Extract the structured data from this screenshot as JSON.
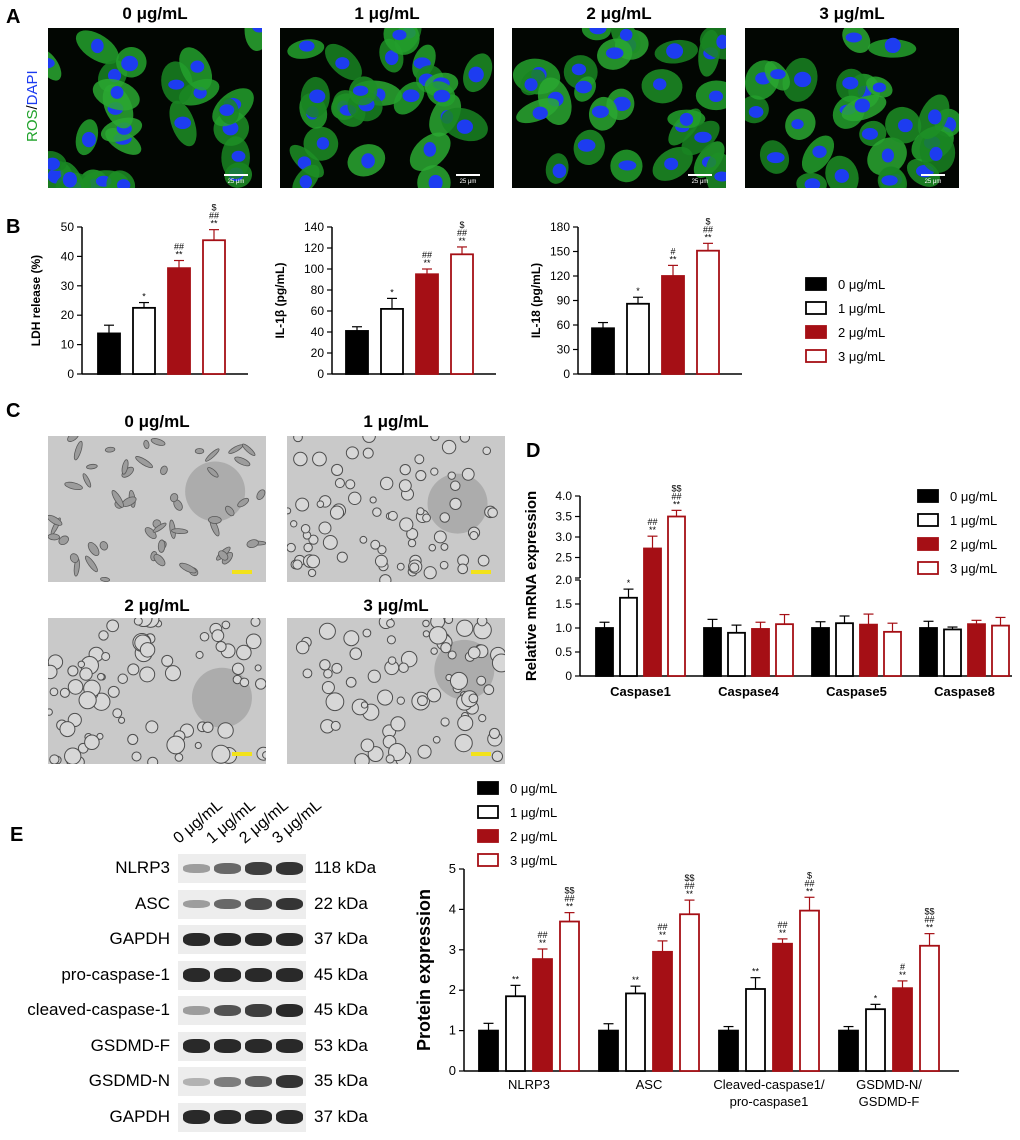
{
  "panel_letters": {
    "a": "A",
    "b": "B",
    "c": "C",
    "d": "D",
    "e": "E"
  },
  "panel_a": {
    "stain_label_green": "ROS",
    "stain_label_sep": "/",
    "stain_label_blue": "DAPI",
    "colors": {
      "ros": "#1fa22a",
      "dapi": "#1d3cf0",
      "background": "#020602"
    },
    "scale_bar": "25 μm",
    "titles": [
      "0 μg/mL",
      "1 μg/mL",
      "2 μg/mL",
      "3 μg/mL"
    ]
  },
  "panel_c": {
    "titles": [
      "0 μg/mL",
      "1 μg/mL",
      "2 μg/mL",
      "3 μg/mL"
    ],
    "scale_bar_color": "#f2e21a"
  },
  "legend": {
    "entries": [
      "0 μg/mL",
      "1 μg/mL",
      "2 μg/mL",
      "3 μg/mL"
    ],
    "fills": [
      "#000000",
      "#ffffff",
      "#a50f15",
      "#ffffff"
    ],
    "strokes": [
      "#000000",
      "#000000",
      "#a50f15",
      "#a50f15"
    ]
  },
  "chart_data": [
    {
      "id": "ldh",
      "type": "bar",
      "ylabel": "LDH release (%)",
      "ylim": [
        0,
        50
      ],
      "yticks": [
        0,
        10,
        20,
        30,
        40,
        50
      ],
      "categories": [
        ""
      ],
      "series": [
        {
          "name": "0 μg/mL",
          "values": [
            13.8
          ],
          "errors": [
            2.8
          ],
          "sig": [
            ""
          ]
        },
        {
          "name": "1 μg/mL",
          "values": [
            22.5
          ],
          "errors": [
            1.8
          ],
          "sig": [
            "*"
          ]
        },
        {
          "name": "2 μg/mL",
          "values": [
            36.0
          ],
          "errors": [
            2.6
          ],
          "sig": [
            "**\n##"
          ]
        },
        {
          "name": "3 μg/mL",
          "values": [
            45.5
          ],
          "errors": [
            3.6
          ],
          "sig": [
            "**\n##\n$"
          ]
        }
      ]
    },
    {
      "id": "il1b",
      "type": "bar",
      "ylabel": "IL-1β (pg/mL)",
      "ylim": [
        0,
        140
      ],
      "yticks": [
        0,
        20,
        40,
        60,
        80,
        100,
        120,
        140
      ],
      "categories": [
        ""
      ],
      "series": [
        {
          "name": "0 μg/mL",
          "values": [
            41
          ],
          "errors": [
            4
          ],
          "sig": [
            ""
          ]
        },
        {
          "name": "1 μg/mL",
          "values": [
            62
          ],
          "errors": [
            10
          ],
          "sig": [
            "*"
          ]
        },
        {
          "name": "2 μg/mL",
          "values": [
            95
          ],
          "errors": [
            5
          ],
          "sig": [
            "**\n##"
          ]
        },
        {
          "name": "3 μg/mL",
          "values": [
            114
          ],
          "errors": [
            7
          ],
          "sig": [
            "**\n##\n$"
          ]
        }
      ]
    },
    {
      "id": "il18",
      "type": "bar",
      "ylabel": "IL-18 (pg/mL)",
      "ylim": [
        0,
        180
      ],
      "yticks": [
        0,
        30,
        60,
        90,
        120,
        150,
        180
      ],
      "categories": [
        ""
      ],
      "series": [
        {
          "name": "0 μg/mL",
          "values": [
            56
          ],
          "errors": [
            7
          ],
          "sig": [
            ""
          ]
        },
        {
          "name": "1 μg/mL",
          "values": [
            86
          ],
          "errors": [
            8
          ],
          "sig": [
            "*"
          ]
        },
        {
          "name": "2 μg/mL",
          "values": [
            120
          ],
          "errors": [
            13
          ],
          "sig": [
            "**\n#"
          ]
        },
        {
          "name": "3 μg/mL",
          "values": [
            151
          ],
          "errors": [
            9
          ],
          "sig": [
            "**\n##\n$"
          ]
        }
      ]
    },
    {
      "id": "mrna",
      "type": "bar",
      "ylabel": "Relative mRNA expression",
      "axis_break": [
        2.0,
        2.0
      ],
      "yticks_lower": [
        0,
        0.5,
        1.0,
        1.5,
        2.0
      ],
      "yticks_upper": [
        2.0,
        2.5,
        3.0,
        3.5,
        4.0
      ],
      "ytick_labels_lower": [
        "0",
        "0.5",
        "1.0",
        "1.5",
        "2.0"
      ],
      "ytick_labels_upper": [
        "",
        "2.5",
        "3.0",
        "3.5",
        "4.0"
      ],
      "categories": [
        "Caspase1",
        "Caspase4",
        "Caspase5",
        "Caspase8"
      ],
      "series": [
        {
          "name": "0 μg/mL",
          "values": [
            1.0,
            1.0,
            1.0,
            1.0
          ],
          "errors": [
            0.12,
            0.18,
            0.13,
            0.14
          ],
          "sig": [
            "",
            "",
            "",
            ""
          ]
        },
        {
          "name": "1 μg/mL",
          "values": [
            1.63,
            0.9,
            1.1,
            0.97
          ],
          "errors": [
            0.18,
            0.16,
            0.15,
            0.05
          ],
          "sig": [
            "*",
            "",
            "",
            ""
          ]
        },
        {
          "name": "2 μg/mL",
          "values": [
            2.72,
            0.98,
            1.07,
            1.08
          ],
          "errors": [
            0.3,
            0.14,
            0.22,
            0.08
          ],
          "sig": [
            "**\n##",
            "",
            "",
            ""
          ]
        },
        {
          "name": "3 μg/mL",
          "values": [
            3.5,
            1.08,
            0.92,
            1.05
          ],
          "errors": [
            0.15,
            0.2,
            0.18,
            0.17
          ],
          "sig": [
            "**\n##\n$$",
            "",
            "",
            ""
          ]
        }
      ]
    },
    {
      "id": "protein",
      "type": "bar",
      "ylabel": "Protein expression",
      "ylim": [
        0,
        5
      ],
      "yticks": [
        0,
        1,
        2,
        3,
        4,
        5
      ],
      "categories": [
        "NLRP3",
        "ASC",
        "Cleaved-caspase1/\npro-caspase1",
        "GSDMD-N/\nGSDMD-F"
      ],
      "series": [
        {
          "name": "0 μg/mL",
          "values": [
            1.0,
            1.0,
            1.0,
            1.0
          ],
          "errors": [
            0.18,
            0.17,
            0.1,
            0.1
          ],
          "sig": [
            "",
            "",
            "",
            ""
          ]
        },
        {
          "name": "1 μg/mL",
          "values": [
            1.85,
            1.92,
            2.03,
            1.53
          ],
          "errors": [
            0.27,
            0.18,
            0.28,
            0.12
          ],
          "sig": [
            "**",
            "**",
            "**",
            "*"
          ]
        },
        {
          "name": "2 μg/mL",
          "values": [
            2.77,
            2.95,
            3.15,
            2.05
          ],
          "errors": [
            0.25,
            0.27,
            0.12,
            0.18
          ],
          "sig": [
            "**\n##",
            "**\n##",
            "**\n##",
            "**\n#"
          ]
        },
        {
          "name": "3 μg/mL",
          "values": [
            3.7,
            3.88,
            3.97,
            3.1
          ],
          "errors": [
            0.22,
            0.35,
            0.33,
            0.3
          ],
          "sig": [
            "**\n##\n$$",
            "**\n##\n$$",
            "**\n##\n$",
            "**\n##\n$$"
          ]
        }
      ]
    }
  ],
  "western_blot": {
    "lanes": [
      "0 μg/mL",
      "1 μg/mL",
      "2 μg/mL",
      "3 μg/mL"
    ],
    "rows": [
      {
        "protein": "NLRP3",
        "kda": "118 kDa",
        "intensity": [
          0.35,
          0.6,
          0.8,
          0.85
        ]
      },
      {
        "protein": "ASC",
        "kda": "22 kDa",
        "intensity": [
          0.35,
          0.6,
          0.75,
          0.85
        ]
      },
      {
        "protein": "GAPDH",
        "kda": "37 kDa",
        "intensity": [
          0.9,
          0.9,
          0.9,
          0.9
        ]
      },
      {
        "protein": "pro-caspase-1",
        "kda": "45 kDa",
        "intensity": [
          0.9,
          0.9,
          0.9,
          0.9
        ]
      },
      {
        "protein": "cleaved-caspase-1",
        "kda": "45 kDa",
        "intensity": [
          0.35,
          0.7,
          0.8,
          0.9
        ]
      },
      {
        "protein": "GSDMD-F",
        "kda": "53 kDa",
        "intensity": [
          0.9,
          0.9,
          0.9,
          0.9
        ]
      },
      {
        "protein": "GSDMD-N",
        "kda": "35 kDa",
        "intensity": [
          0.25,
          0.5,
          0.65,
          0.85
        ]
      },
      {
        "protein": "GAPDH",
        "kda": "37 kDa",
        "intensity": [
          0.9,
          0.9,
          0.9,
          0.9
        ]
      }
    ]
  }
}
